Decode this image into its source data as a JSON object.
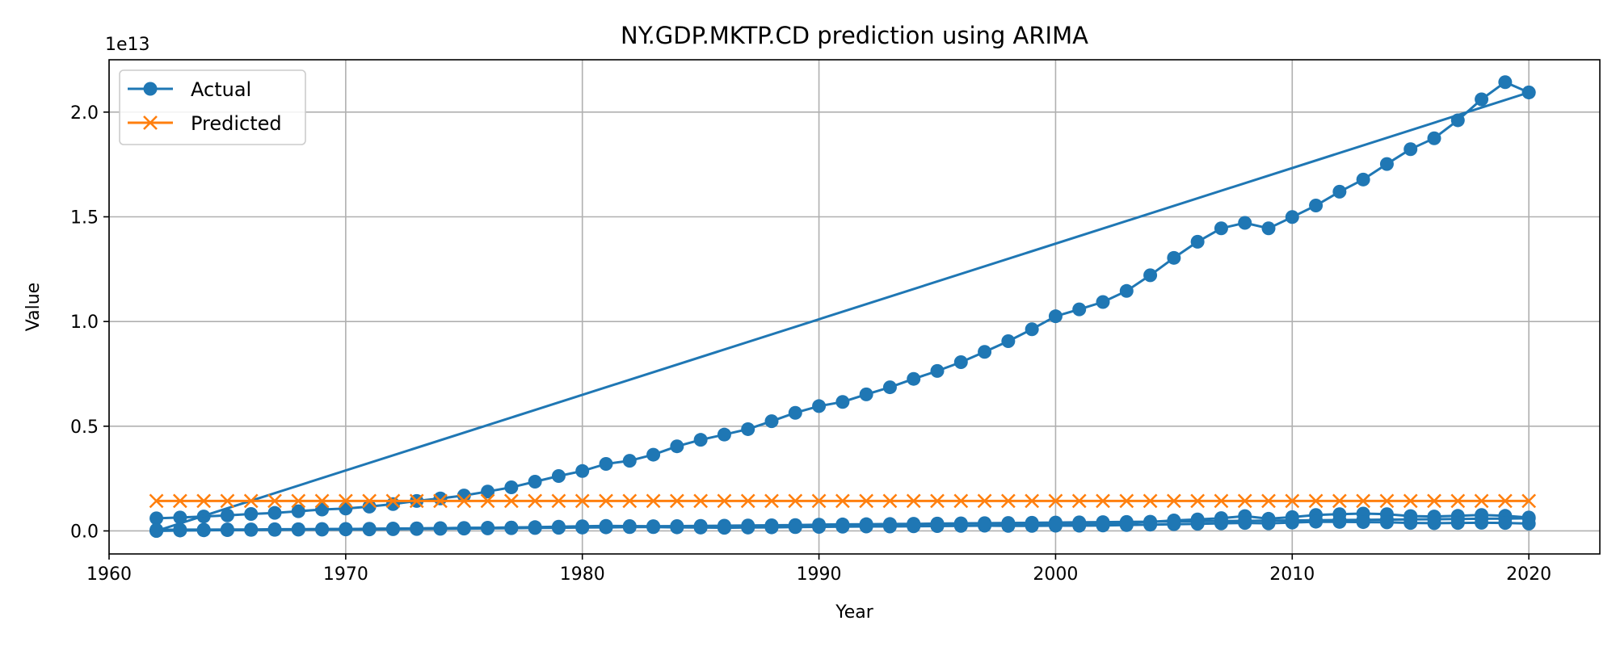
{
  "chart_data": {
    "type": "line",
    "title": "NY.GDP.MKTP.CD prediction using ARIMA",
    "xlabel": "Year",
    "ylabel": "Value",
    "y_offset_label": "1e13",
    "xlim": [
      1960,
      2023
    ],
    "ylim": [
      -0.11,
      2.25
    ],
    "x_ticks": [
      1960,
      1970,
      1980,
      1990,
      2000,
      2010,
      2020
    ],
    "y_ticks": [
      0.0,
      0.5,
      1.0,
      1.5,
      2.0
    ],
    "y_tick_labels": [
      "0.0",
      "0.5",
      "1.0",
      "1.5",
      "2.0"
    ],
    "grid": true,
    "legend_position": "top-left",
    "colors": {
      "actual": "#1f77b4",
      "predicted": "#ff7f0e"
    },
    "series": [
      {
        "name": "Actual",
        "marker": "circle",
        "segments": [
          {
            "x": [
              1962,
              1963,
              1964,
              1965,
              1966,
              1967,
              1968,
              1969,
              1970,
              1971,
              1972,
              1973,
              1974,
              1975,
              1976,
              1977,
              1978,
              1979,
              1980,
              1981,
              1982,
              1983,
              1984,
              1985,
              1986,
              1987,
              1988,
              1989,
              1990,
              1991,
              1992,
              1993,
              1994,
              1995,
              1996,
              1997,
              1998,
              1999,
              2000,
              2001,
              2002,
              2003,
              2004,
              2005,
              2006,
              2007,
              2008,
              2009,
              2010,
              2011,
              2012,
              2013,
              2014,
              2015,
              2016,
              2017,
              2018,
              2019,
              2020
            ],
            "y": [
              0.06,
              0.064,
              0.069,
              0.074,
              0.081,
              0.086,
              0.094,
              0.102,
              0.107,
              0.116,
              0.128,
              0.143,
              0.155,
              0.169,
              0.188,
              0.208,
              0.235,
              0.262,
              0.286,
              0.32,
              0.335,
              0.364,
              0.404,
              0.435,
              0.46,
              0.486,
              0.524,
              0.564,
              0.596,
              0.616,
              0.652,
              0.686,
              0.726,
              0.764,
              0.806,
              0.855,
              0.906,
              0.963,
              1.025,
              1.058,
              1.093,
              1.146,
              1.221,
              1.304,
              1.381,
              1.445,
              1.471,
              1.445,
              1.499,
              1.554,
              1.62,
              1.678,
              1.752,
              1.823,
              1.875,
              1.961,
              2.061,
              2.143,
              2.094
            ]
          },
          {
            "x": [
              1962,
              2020
            ],
            "y": [
              0.0,
              2.094
            ]
          },
          {
            "x": [
              1962,
              1963,
              1964,
              1965,
              1966,
              1967,
              1968,
              1969,
              1970,
              1971,
              1972,
              1973,
              1974,
              1975,
              1976,
              1977,
              1978,
              1979,
              1980,
              1981,
              1982,
              1983,
              1984,
              1985,
              1986,
              1987,
              1988,
              1989,
              1990,
              1991,
              1992,
              1993,
              1994,
              1995,
              1996,
              1997,
              1998,
              1999,
              2000,
              2001,
              2002,
              2003,
              2004,
              2005,
              2006,
              2007,
              2008,
              2009,
              2010,
              2011,
              2012,
              2013,
              2014,
              2015,
              2016,
              2017,
              2018,
              2019,
              2020
            ],
            "y": [
              0.0,
              0.002,
              0.003,
              0.004,
              0.005,
              0.006,
              0.007,
              0.008,
              0.009,
              0.01,
              0.011,
              0.012,
              0.013,
              0.014,
              0.015,
              0.016,
              0.017,
              0.018,
              0.019,
              0.02,
              0.021,
              0.022,
              0.023,
              0.024,
              0.025,
              0.026,
              0.027,
              0.028,
              0.03,
              0.031,
              0.032,
              0.033,
              0.034,
              0.035,
              0.036,
              0.037,
              0.038,
              0.039,
              0.04,
              0.041,
              0.042,
              0.043,
              0.044,
              0.045,
              0.046,
              0.047,
              0.048,
              0.049,
              0.05,
              0.051,
              0.052,
              0.053,
              0.054,
              0.055,
              0.056,
              0.057,
              0.058,
              0.059,
              0.06
            ]
          },
          {
            "x": [
              1962,
              1963,
              1964,
              1965,
              1966,
              1967,
              1968,
              1969,
              1970,
              1971,
              1972,
              1973,
              1974,
              1975,
              1976,
              1977,
              1978,
              1979,
              1980,
              1981,
              1982,
              1983,
              1984,
              1985,
              1986,
              1987,
              1988,
              1989,
              1990,
              1991,
              1992,
              1993,
              1994,
              1995,
              1996,
              1997,
              1998,
              1999,
              2000,
              2001,
              2002,
              2003,
              2004,
              2005,
              2006,
              2007,
              2008,
              2009,
              2010,
              2011,
              2012,
              2013,
              2014,
              2015,
              2016,
              2017,
              2018,
              2019,
              2020
            ],
            "y": [
              0.005,
              0.006,
              0.006,
              0.007,
              0.007,
              0.008,
              0.008,
              0.009,
              0.009,
              0.01,
              0.011,
              0.012,
              0.013,
              0.014,
              0.015,
              0.016,
              0.018,
              0.02,
              0.022,
              0.024,
              0.023,
              0.022,
              0.021,
              0.02,
              0.019,
              0.02,
              0.022,
              0.024,
              0.026,
              0.028,
              0.03,
              0.031,
              0.032,
              0.034,
              0.035,
              0.036,
              0.034,
              0.033,
              0.035,
              0.033,
              0.034,
              0.038,
              0.043,
              0.05,
              0.055,
              0.061,
              0.071,
              0.058,
              0.066,
              0.076,
              0.08,
              0.083,
              0.08,
              0.071,
              0.069,
              0.072,
              0.076,
              0.072,
              0.064
            ]
          },
          {
            "x": [
              1962,
              1963,
              1964,
              1965,
              1966,
              1967,
              1968,
              1969,
              1970,
              1971,
              1972,
              1973,
              1974,
              1975,
              1976,
              1977,
              1978,
              1979,
              1980,
              1981,
              1982,
              1983,
              1984,
              1985,
              1986,
              1987,
              1988,
              1989,
              1990,
              1991,
              1992,
              1993,
              1994,
              1995,
              1996,
              1997,
              1998,
              1999,
              2000,
              2001,
              2002,
              2003,
              2004,
              2005,
              2006,
              2007,
              2008,
              2009,
              2010,
              2011,
              2012,
              2013,
              2014,
              2015,
              2016,
              2017,
              2018,
              2019,
              2020
            ],
            "y": [
              0.003,
              0.003,
              0.004,
              0.004,
              0.005,
              0.005,
              0.006,
              0.006,
              0.007,
              0.007,
              0.008,
              0.009,
              0.01,
              0.011,
              0.012,
              0.013,
              0.014,
              0.015,
              0.016,
              0.017,
              0.018,
              0.018,
              0.017,
              0.016,
              0.015,
              0.016,
              0.017,
              0.018,
              0.019,
              0.02,
              0.021,
              0.021,
              0.022,
              0.023,
              0.024,
              0.025,
              0.024,
              0.024,
              0.025,
              0.025,
              0.026,
              0.028,
              0.03,
              0.032,
              0.034,
              0.036,
              0.038,
              0.036,
              0.04,
              0.044,
              0.043,
              0.042,
              0.041,
              0.038,
              0.037,
              0.038,
              0.039,
              0.038,
              0.035
            ]
          }
        ]
      },
      {
        "name": "Predicted",
        "marker": "x",
        "segments": [
          {
            "x": [
              1962,
              1963,
              1964,
              1965,
              1966,
              1967,
              1968,
              1969,
              1970,
              1971,
              1972,
              1973,
              1974,
              1975,
              1976,
              1977,
              1978,
              1979,
              1980,
              1981,
              1982,
              1983,
              1984,
              1985,
              1986,
              1987,
              1988,
              1989,
              1990,
              1991,
              1992,
              1993,
              1994,
              1995,
              1996,
              1997,
              1998,
              1999,
              2000,
              2001,
              2002,
              2003,
              2004,
              2005,
              2006,
              2007,
              2008,
              2009,
              2010,
              2011,
              2012,
              2013,
              2014,
              2015,
              2016,
              2017,
              2018,
              2019,
              2020
            ],
            "y": [
              0.143,
              0.143,
              0.143,
              0.143,
              0.143,
              0.143,
              0.143,
              0.143,
              0.143,
              0.143,
              0.143,
              0.143,
              0.143,
              0.143,
              0.143,
              0.143,
              0.143,
              0.143,
              0.143,
              0.143,
              0.143,
              0.143,
              0.143,
              0.143,
              0.143,
              0.143,
              0.143,
              0.143,
              0.143,
              0.143,
              0.143,
              0.143,
              0.143,
              0.143,
              0.143,
              0.143,
              0.143,
              0.143,
              0.143,
              0.143,
              0.143,
              0.143,
              0.143,
              0.143,
              0.143,
              0.143,
              0.143,
              0.143,
              0.143,
              0.143,
              0.143,
              0.143,
              0.143,
              0.143,
              0.143,
              0.143,
              0.143,
              0.143,
              0.143
            ]
          }
        ]
      }
    ]
  }
}
